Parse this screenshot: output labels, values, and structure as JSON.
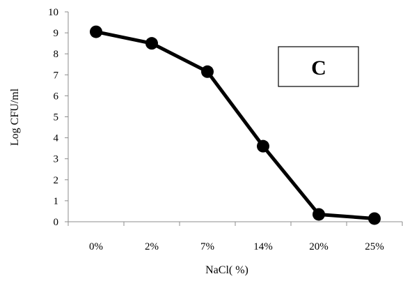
{
  "chart_data": {
    "type": "line",
    "categories": [
      "0%",
      "2%",
      "7%",
      "14%",
      "20%",
      "25%"
    ],
    "series": [
      {
        "values": [
          9.05,
          8.5,
          7.15,
          3.6,
          0.35,
          0.15
        ]
      }
    ],
    "xlabel": "NaCl( %)",
    "ylabel": "Log CFU/ml",
    "ylim": [
      0,
      10
    ],
    "yticks": [
      "0",
      "1",
      "2",
      "3",
      "4",
      "5",
      "6",
      "7",
      "8",
      "9",
      "10"
    ],
    "panel_label": "C",
    "grid": false,
    "colors": {
      "line": "#000000",
      "marker": "#000000",
      "axis": "#8c8c8c"
    }
  }
}
